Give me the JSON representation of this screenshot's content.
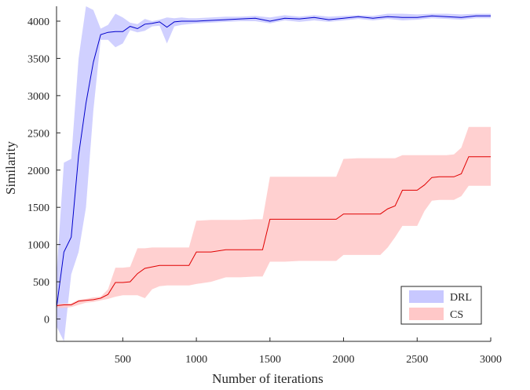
{
  "chart_data": {
    "type": "line",
    "title": "",
    "xlabel": "Number of iterations",
    "ylabel": "Similarity",
    "xlim": [
      50,
      3000
    ],
    "ylim": [
      -300,
      4200
    ],
    "xticks": [
      500,
      1000,
      1500,
      2000,
      2500,
      3000
    ],
    "yticks": [
      0,
      500,
      1000,
      1500,
      2000,
      2500,
      3000,
      3500,
      4000
    ],
    "grid": false,
    "legend_position": "bottom-right",
    "series": [
      {
        "name": "DRL",
        "line_color": "#0000cc",
        "band_color": "#c8c8ff",
        "x": [
          50,
          100,
          150,
          200,
          250,
          300,
          350,
          400,
          450,
          500,
          550,
          600,
          650,
          700,
          750,
          800,
          850,
          900,
          950,
          1000,
          1100,
          1200,
          1300,
          1400,
          1500,
          1600,
          1700,
          1800,
          1900,
          2000,
          2100,
          2200,
          2300,
          2400,
          2500,
          2600,
          2700,
          2800,
          2900,
          3000
        ],
        "values": [
          150,
          900,
          1100,
          2200,
          2900,
          3450,
          3820,
          3850,
          3860,
          3860,
          3930,
          3900,
          3960,
          3970,
          3990,
          3920,
          3990,
          4000,
          4000,
          4000,
          4010,
          4020,
          4030,
          4040,
          4000,
          4040,
          4030,
          4050,
          4020,
          4040,
          4060,
          4040,
          4060,
          4050,
          4050,
          4070,
          4060,
          4050,
          4070,
          4070
        ],
        "upper": [
          600,
          2100,
          2150,
          3500,
          4200,
          4150,
          3900,
          3950,
          4100,
          4050,
          3980,
          3960,
          4030,
          4000,
          4020,
          4050,
          4040,
          4050,
          4040,
          4040,
          4050,
          4060,
          4060,
          4070,
          4050,
          4080,
          4060,
          4080,
          4060,
          4070,
          4080,
          4070,
          4100,
          4100,
          4090,
          4100,
          4100,
          4090,
          4100,
          4100
        ],
        "lower": [
          -100,
          -300,
          600,
          900,
          1500,
          2800,
          3750,
          3750,
          3650,
          3700,
          3880,
          3850,
          3870,
          3930,
          3940,
          3700,
          3930,
          3950,
          3960,
          3970,
          3980,
          3990,
          4000,
          4000,
          3970,
          4010,
          3990,
          4010,
          3990,
          4010,
          4030,
          4010,
          4030,
          4010,
          4020,
          4040,
          4030,
          4020,
          4040,
          4040
        ]
      },
      {
        "name": "CS",
        "line_color": "#e00000",
        "band_color": "#ffc8c8",
        "x": [
          50,
          100,
          150,
          200,
          250,
          300,
          350,
          400,
          450,
          500,
          550,
          600,
          650,
          700,
          750,
          800,
          850,
          900,
          950,
          1000,
          1100,
          1200,
          1300,
          1400,
          1450,
          1500,
          1600,
          1700,
          1800,
          1900,
          1950,
          2000,
          2100,
          2200,
          2250,
          2300,
          2350,
          2400,
          2450,
          2500,
          2550,
          2600,
          2650,
          2700,
          2750,
          2800,
          2850,
          2900,
          3000
        ],
        "values": [
          180,
          190,
          190,
          240,
          250,
          260,
          280,
          330,
          490,
          490,
          500,
          610,
          680,
          700,
          720,
          720,
          720,
          720,
          720,
          900,
          900,
          930,
          930,
          930,
          930,
          1340,
          1340,
          1340,
          1340,
          1340,
          1340,
          1410,
          1410,
          1410,
          1410,
          1480,
          1520,
          1730,
          1730,
          1730,
          1800,
          1900,
          1910,
          1910,
          1910,
          1950,
          2180,
          2180,
          2180
        ],
        "upper": [
          200,
          210,
          210,
          260,
          270,
          290,
          300,
          400,
          690,
          690,
          700,
          950,
          950,
          960,
          960,
          960,
          960,
          960,
          960,
          1320,
          1330,
          1330,
          1330,
          1340,
          1340,
          1910,
          1910,
          1910,
          1910,
          1910,
          1910,
          2150,
          2160,
          2160,
          2160,
          2160,
          2160,
          2200,
          2200,
          2200,
          2200,
          2200,
          2200,
          2200,
          2210,
          2300,
          2580,
          2580,
          2580
        ],
        "lower": [
          150,
          150,
          160,
          190,
          220,
          230,
          250,
          270,
          300,
          320,
          320,
          320,
          280,
          400,
          440,
          450,
          450,
          450,
          450,
          470,
          500,
          560,
          560,
          570,
          570,
          770,
          770,
          780,
          780,
          780,
          780,
          860,
          860,
          860,
          860,
          960,
          1100,
          1250,
          1250,
          1250,
          1450,
          1590,
          1600,
          1600,
          1600,
          1650,
          1790,
          1790,
          1790
        ]
      }
    ]
  }
}
